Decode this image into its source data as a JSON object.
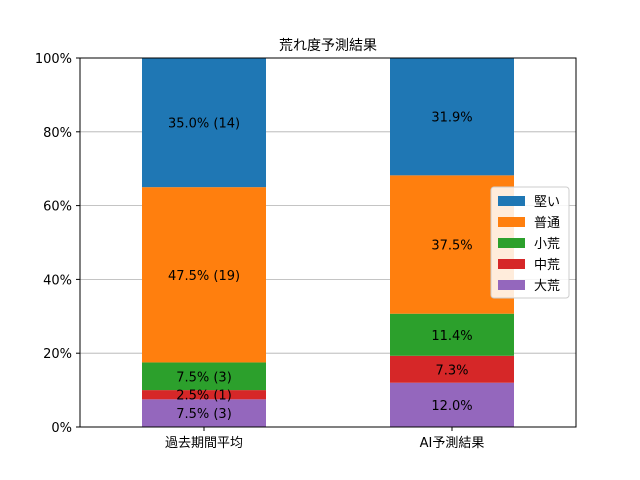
{
  "chart_data": {
    "type": "bar",
    "stacked": true,
    "title": "荒れ度予測結果",
    "categories": [
      "過去期間平均",
      "AI予測結果"
    ],
    "stack_order_bottom_to_top": [
      "大荒",
      "中荒",
      "小荒",
      "普通",
      "堅い"
    ],
    "series": [
      {
        "name": "大荒",
        "color": "#9467bd",
        "values": [
          7.5,
          12.0
        ],
        "labels": [
          "7.5% (3)",
          "12.0%"
        ]
      },
      {
        "name": "中荒",
        "color": "#d62728",
        "values": [
          2.5,
          7.3
        ],
        "labels": [
          "2.5% (1)",
          "7.3%"
        ]
      },
      {
        "name": "小荒",
        "color": "#2ca02c",
        "values": [
          7.5,
          11.4
        ],
        "labels": [
          "7.5% (3)",
          "11.4%"
        ]
      },
      {
        "name": "普通",
        "color": "#ff7f0e",
        "values": [
          47.5,
          37.5
        ],
        "labels": [
          "47.5% (19)",
          "37.5%"
        ]
      },
      {
        "name": "堅い",
        "color": "#1f77b4",
        "values": [
          35.0,
          31.9
        ],
        "labels": [
          "35.0% (14)",
          "31.9%"
        ]
      }
    ],
    "legend_order": [
      "堅い",
      "普通",
      "小荒",
      "中荒",
      "大荒"
    ],
    "legend_position": "right",
    "y_ticks": [
      "0%",
      "20%",
      "40%",
      "60%",
      "80%",
      "100%"
    ],
    "ylim": [
      0,
      100
    ],
    "grid": "y",
    "xlabel": "",
    "ylabel": ""
  }
}
